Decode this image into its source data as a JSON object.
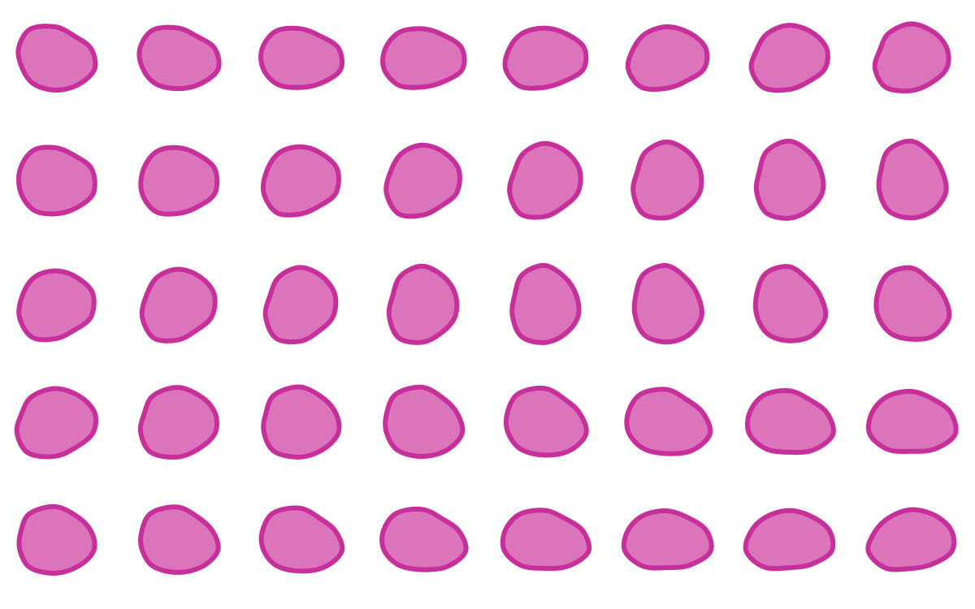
{
  "colors": {
    "background": "#ffffff",
    "blob_fill": "#db74bb",
    "blob_stroke": "#c7309a"
  },
  "grid": {
    "rows": 5,
    "columns": 8,
    "count": 40
  },
  "content": {
    "description_visible_text": ""
  }
}
